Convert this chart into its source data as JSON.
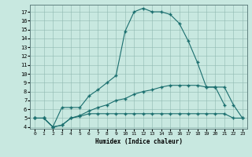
{
  "xlabel": "Humidex (Indice chaleur)",
  "background_color": "#c8e8e0",
  "line_color": "#1a6e6e",
  "xlim": [
    -0.5,
    23.5
  ],
  "ylim": [
    3.8,
    17.8
  ],
  "xticks": [
    0,
    1,
    2,
    3,
    4,
    5,
    6,
    7,
    8,
    9,
    10,
    11,
    12,
    13,
    14,
    15,
    16,
    17,
    18,
    19,
    20,
    21,
    22,
    23
  ],
  "yticks": [
    4,
    5,
    6,
    7,
    8,
    9,
    10,
    11,
    12,
    13,
    14,
    15,
    16,
    17
  ],
  "curve1_x": [
    0,
    1,
    2,
    3,
    4,
    5,
    6,
    7,
    8,
    9,
    10,
    11,
    12,
    13,
    14,
    15,
    16,
    17,
    18,
    19,
    20,
    21
  ],
  "curve1_y": [
    5.0,
    5.0,
    4.0,
    6.2,
    6.2,
    6.2,
    7.5,
    8.2,
    9.0,
    9.8,
    14.8,
    17.0,
    17.4,
    17.0,
    17.0,
    16.7,
    15.7,
    13.7,
    11.3,
    8.5,
    8.5,
    6.5
  ],
  "curve2_x": [
    0,
    1,
    2,
    3,
    4,
    5,
    6,
    7,
    8,
    9,
    10,
    11,
    12,
    13,
    14,
    15,
    16,
    17,
    18,
    19,
    20,
    21,
    22,
    23
  ],
  "curve2_y": [
    5.0,
    5.0,
    4.0,
    4.2,
    5.0,
    5.3,
    5.8,
    6.2,
    6.5,
    7.0,
    7.2,
    7.7,
    8.0,
    8.2,
    8.5,
    8.7,
    8.7,
    8.7,
    8.7,
    8.5,
    8.5,
    8.5,
    6.5,
    5.0
  ],
  "curve3_x": [
    0,
    1,
    2,
    3,
    4,
    5,
    6,
    7,
    8,
    9,
    10,
    11,
    12,
    13,
    14,
    15,
    16,
    17,
    18,
    19,
    20,
    21,
    22,
    23
  ],
  "curve3_y": [
    5.0,
    5.0,
    4.0,
    4.2,
    5.0,
    5.2,
    5.5,
    5.5,
    5.5,
    5.5,
    5.5,
    5.5,
    5.5,
    5.5,
    5.5,
    5.5,
    5.5,
    5.5,
    5.5,
    5.5,
    5.5,
    5.5,
    5.0,
    5.0
  ]
}
